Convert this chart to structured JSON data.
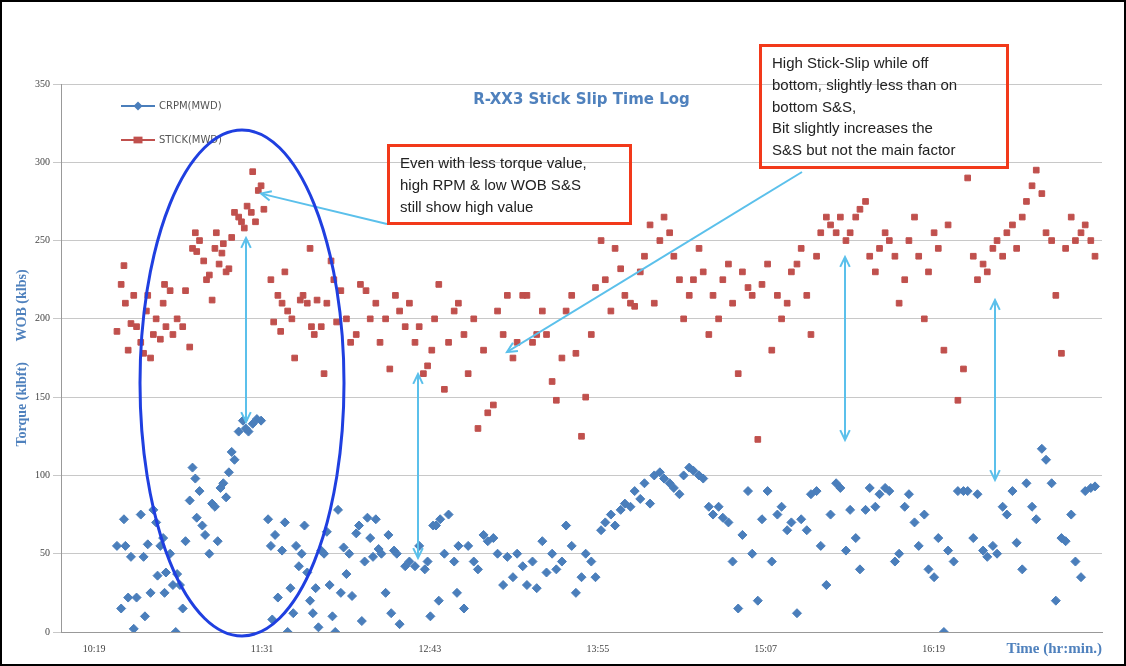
{
  "chart_data": {
    "type": "scatter",
    "title": "R-XX3 Stick Slip Time Log",
    "xlabel": "Time (hr:min.)",
    "ylabel": "Torque (klbft)      WOB (klbs)",
    "xlim": [
      10.08,
      17.52
    ],
    "xticks": [
      {
        "value": 10.3167,
        "label": "10:19"
      },
      {
        "value": 11.5167,
        "label": "11:31"
      },
      {
        "value": 12.7167,
        "label": "12:43"
      },
      {
        "value": 13.9167,
        "label": "13:55"
      },
      {
        "value": 15.1167,
        "label": "15:07"
      },
      {
        "value": 16.3167,
        "label": "16:19"
      }
    ],
    "ylim": [
      0,
      350
    ],
    "yticks": [
      0,
      50,
      100,
      150,
      200,
      250,
      300,
      350
    ],
    "grid": "y",
    "legend": "top left",
    "series": [
      {
        "name": "CRPM(MWD)",
        "color": "#4a7ebb",
        "marker": "diamond",
        "x": [
          10.48,
          10.51,
          10.53,
          10.54,
          10.56,
          10.58,
          10.6,
          10.62,
          10.65,
          10.67,
          10.68,
          10.7,
          10.72,
          10.74,
          10.76,
          10.77,
          10.79,
          10.81,
          10.82,
          10.83,
          10.86,
          10.88,
          10.9,
          10.91,
          10.93,
          10.95,
          10.97,
          11.0,
          11.02,
          11.04,
          11.05,
          11.07,
          11.09,
          11.11,
          11.14,
          11.16,
          11.18,
          11.2,
          11.22,
          11.24,
          11.26,
          11.28,
          11.3,
          11.32,
          11.35,
          11.38,
          11.4,
          11.42,
          11.45,
          11.48,
          11.51,
          11.56,
          11.58,
          11.59,
          11.61,
          11.63,
          11.66,
          11.68,
          11.7,
          11.72,
          11.74,
          11.76,
          11.78,
          11.8,
          11.82,
          11.84,
          11.86,
          11.88,
          11.9,
          11.92,
          11.94,
          11.96,
          11.98,
          12.0,
          12.02,
          12.04,
          12.06,
          12.08,
          12.1,
          12.12,
          12.14,
          12.16,
          12.19,
          12.21,
          12.23,
          12.25,
          12.27,
          12.29,
          12.31,
          12.33,
          12.35,
          12.37,
          12.4,
          12.42,
          12.44,
          12.46,
          12.48,
          12.5,
          12.54,
          12.57,
          12.61,
          12.64,
          12.68,
          12.7,
          12.72,
          12.74,
          12.76,
          12.78,
          12.79,
          12.82,
          12.85,
          12.89,
          12.91,
          12.92,
          12.96,
          12.99,
          13.03,
          13.06,
          13.1,
          13.13,
          13.17,
          13.2,
          13.24,
          13.27,
          13.31,
          13.34,
          13.38,
          13.41,
          13.45,
          13.48,
          13.52,
          13.55,
          13.59,
          13.62,
          13.66,
          13.69,
          13.73,
          13.76,
          13.8,
          13.83,
          13.87,
          13.9,
          13.94,
          13.97,
          14.01,
          14.04,
          14.08,
          14.11,
          14.15,
          14.18,
          14.22,
          14.25,
          14.29,
          14.32,
          14.36,
          14.39,
          14.43,
          14.46,
          14.5,
          14.53,
          14.57,
          14.6,
          14.64,
          14.67,
          14.71,
          14.74,
          14.78,
          14.81,
          14.85,
          14.88,
          14.92,
          14.95,
          14.99,
          15.02,
          15.06,
          15.09,
          15.13,
          15.16,
          15.2,
          15.23,
          15.27,
          15.3,
          15.34,
          15.37,
          15.41,
          15.44,
          15.48,
          15.51,
          15.55,
          15.58,
          15.62,
          15.65,
          15.69,
          15.72,
          15.76,
          15.79,
          15.83,
          15.86,
          15.9,
          15.93,
          15.97,
          16.0,
          16.04,
          16.07,
          16.11,
          16.14,
          16.18,
          16.21,
          16.25,
          16.28,
          16.32,
          16.35,
          16.39,
          16.42,
          16.46,
          16.49,
          16.53,
          16.56,
          16.6,
          16.63,
          16.67,
          16.7,
          16.74,
          16.77,
          16.81,
          16.84,
          16.88,
          16.91,
          16.95,
          16.98,
          17.02,
          17.05,
          17.09,
          17.12,
          17.16,
          17.19,
          17.23,
          17.26,
          17.3,
          17.33,
          17.37,
          17.4,
          17.44,
          17.47
        ],
        "values": [
          55,
          15,
          72,
          55,
          22,
          48,
          2,
          22,
          75,
          48,
          10,
          56,
          25,
          78,
          70,
          36,
          55,
          60,
          25,
          38,
          50,
          30,
          0,
          37,
          30,
          15,
          58,
          84,
          105,
          98,
          73,
          90,
          68,
          62,
          50,
          82,
          80,
          58,
          92,
          95,
          86,
          102,
          115,
          110,
          128,
          135,
          130,
          128,
          133,
          136,
          135,
          72,
          55,
          8,
          62,
          22,
          52,
          70,
          0,
          28,
          12,
          55,
          42,
          50,
          68,
          38,
          20,
          12,
          28,
          3,
          52,
          50,
          64,
          30,
          10,
          0,
          78,
          25,
          54,
          37,
          50,
          23,
          63,
          68,
          7,
          45,
          73,
          60,
          48,
          72,
          53,
          50,
          25,
          62,
          12,
          52,
          50,
          5,
          42,
          45,
          42,
          55,
          40,
          45,
          10,
          68,
          68,
          20,
          72,
          50,
          75,
          45,
          25,
          55,
          15,
          55,
          45,
          40,
          62,
          58,
          60,
          50,
          30,
          48,
          35,
          50,
          42,
          30,
          45,
          28,
          58,
          38,
          50,
          40,
          45,
          68,
          55,
          25,
          35,
          50,
          45,
          35,
          65,
          70,
          75,
          68,
          78,
          82,
          80,
          90,
          85,
          95,
          82,
          100,
          102,
          98,
          95,
          92,
          88,
          100,
          105,
          103,
          100,
          98,
          80,
          75,
          80,
          73,
          70,
          45,
          15,
          62,
          90,
          50,
          20,
          72,
          90,
          45,
          75,
          80,
          65,
          70,
          12,
          72,
          65,
          88,
          90,
          55,
          30,
          75,
          95,
          92,
          52,
          78,
          60,
          40,
          78,
          92,
          80,
          88,
          92,
          90,
          45,
          50,
          80,
          88,
          70,
          55,
          75,
          40,
          35,
          60,
          0,
          52,
          45,
          90,
          90,
          90,
          60,
          88,
          52,
          48,
          55,
          50,
          80,
          75,
          90,
          57,
          40,
          95,
          80,
          72,
          117,
          110,
          95,
          20,
          60,
          58,
          75,
          45,
          35,
          90,
          92,
          93
        ]
      },
      {
        "name": "STICK(MWD)",
        "color": "#c0504d",
        "marker": "square",
        "x": [
          10.48,
          10.51,
          10.53,
          10.54,
          10.56,
          10.58,
          10.6,
          10.62,
          10.65,
          10.67,
          10.69,
          10.7,
          10.72,
          10.74,
          10.76,
          10.79,
          10.81,
          10.82,
          10.83,
          10.86,
          10.88,
          10.91,
          10.95,
          10.97,
          11.0,
          11.02,
          11.04,
          11.05,
          11.07,
          11.1,
          11.12,
          11.14,
          11.16,
          11.18,
          11.19,
          11.21,
          11.23,
          11.24,
          11.26,
          11.28,
          11.3,
          11.32,
          11.35,
          11.37,
          11.39,
          11.41,
          11.44,
          11.45,
          11.47,
          11.49,
          11.51,
          11.53,
          11.58,
          11.6,
          11.63,
          11.65,
          11.66,
          11.68,
          11.7,
          11.73,
          11.75,
          11.79,
          11.81,
          11.84,
          11.86,
          11.87,
          11.89,
          11.91,
          11.94,
          11.96,
          11.98,
          12.01,
          12.03,
          12.05,
          12.08,
          12.12,
          12.15,
          12.19,
          12.22,
          12.26,
          12.29,
          12.33,
          12.36,
          12.4,
          12.43,
          12.47,
          12.5,
          12.54,
          12.57,
          12.61,
          12.64,
          12.67,
          12.7,
          12.73,
          12.75,
          12.78,
          12.82,
          12.85,
          12.89,
          12.92,
          12.96,
          12.99,
          13.03,
          13.06,
          13.1,
          13.13,
          13.17,
          13.2,
          13.24,
          13.27,
          13.31,
          13.34,
          13.38,
          13.41,
          13.45,
          13.48,
          13.52,
          13.55,
          13.59,
          13.62,
          13.66,
          13.69,
          13.73,
          13.76,
          13.8,
          13.83,
          13.87,
          13.9,
          13.94,
          13.97,
          14.01,
          14.04,
          14.08,
          14.11,
          14.15,
          14.18,
          14.22,
          14.25,
          14.29,
          14.32,
          14.36,
          14.39,
          14.43,
          14.46,
          14.5,
          14.53,
          14.57,
          14.6,
          14.64,
          14.67,
          14.71,
          14.74,
          14.78,
          14.81,
          14.85,
          14.88,
          14.92,
          14.95,
          14.99,
          15.02,
          15.06,
          15.09,
          15.13,
          15.16,
          15.2,
          15.23,
          15.27,
          15.3,
          15.34,
          15.37,
          15.41,
          15.44,
          15.48,
          15.51,
          15.55,
          15.58,
          15.62,
          15.65,
          15.69,
          15.72,
          15.76,
          15.79,
          15.83,
          15.86,
          15.9,
          15.93,
          15.97,
          16.0,
          16.04,
          16.07,
          16.11,
          16.14,
          16.18,
          16.21,
          16.25,
          16.28,
          16.32,
          16.35,
          16.39,
          16.42,
          16.49,
          16.53,
          16.56,
          16.6,
          16.63,
          16.67,
          16.7,
          16.74,
          16.77,
          16.81,
          16.84,
          16.88,
          16.91,
          16.95,
          16.98,
          17.02,
          17.05,
          17.09,
          17.12,
          17.16,
          17.19,
          17.23,
          17.26,
          17.3,
          17.33,
          17.37,
          17.4,
          17.44,
          17.47
        ],
        "values": [
          192,
          222,
          234,
          210,
          180,
          197,
          215,
          195,
          185,
          178,
          205,
          215,
          175,
          190,
          200,
          187,
          210,
          222,
          195,
          218,
          190,
          200,
          195,
          218,
          182,
          245,
          255,
          243,
          250,
          237,
          225,
          228,
          212,
          245,
          255,
          235,
          242,
          248,
          230,
          232,
          252,
          268,
          265,
          262,
          258,
          272,
          268,
          294,
          262,
          282,
          285,
          270,
          225,
          198,
          215,
          192,
          210,
          230,
          205,
          200,
          175,
          212,
          215,
          210,
          245,
          195,
          190,
          212,
          195,
          165,
          210,
          237,
          225,
          198,
          218,
          200,
          185,
          190,
          222,
          218,
          200,
          210,
          185,
          200,
          168,
          215,
          205,
          195,
          210,
          185,
          195,
          165,
          170,
          180,
          200,
          222,
          155,
          185,
          205,
          210,
          190,
          165,
          200,
          130,
          180,
          140,
          145,
          205,
          190,
          215,
          175,
          185,
          215,
          215,
          185,
          190,
          205,
          190,
          160,
          148,
          175,
          205,
          215,
          178,
          125,
          150,
          190,
          220,
          250,
          225,
          205,
          245,
          232,
          215,
          210,
          208,
          230,
          240,
          260,
          210,
          250,
          265,
          255,
          240,
          225,
          200,
          215,
          225,
          245,
          230,
          190,
          215,
          200,
          225,
          235,
          210,
          165,
          230,
          220,
          215,
          123,
          222,
          235,
          180,
          215,
          200,
          210,
          230,
          235,
          245,
          215,
          190,
          240,
          255,
          265,
          260,
          255,
          265,
          250,
          255,
          265,
          270,
          275,
          240,
          230,
          245,
          255,
          250,
          240,
          210,
          225,
          250,
          265,
          240,
          200,
          230,
          255,
          245,
          180,
          260,
          148,
          168,
          290,
          240,
          225,
          235,
          230,
          245,
          250,
          240,
          255,
          260,
          245,
          265,
          275,
          285,
          295,
          280,
          255,
          250,
          215,
          178,
          245,
          265,
          250,
          255,
          260,
          250,
          240
        ]
      }
    ],
    "annotations": [
      {
        "text": "Even with less torque value,\nhigh RPM & low WOB S&S\nstill show high value",
        "x": 11.51,
        "y": 280
      },
      "High Stick-Slip while off\nbottom, slightly less than on\nbottom S&S,\nBit slightly increases the\nS&S but not the main factor"
    ]
  }
}
